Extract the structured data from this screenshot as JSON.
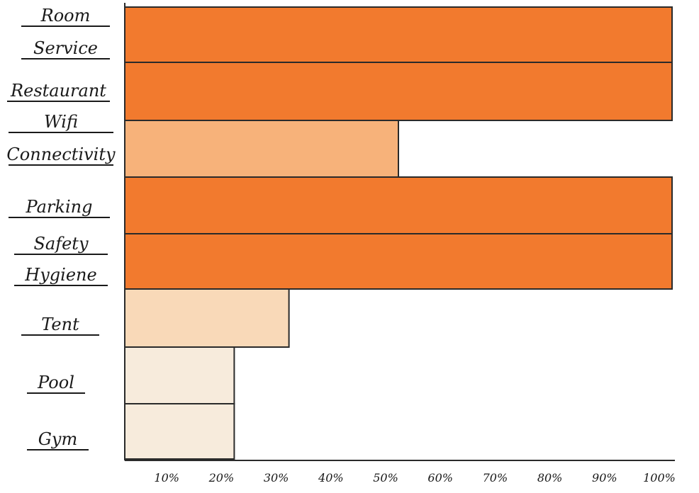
{
  "chart_data": {
    "type": "bar",
    "orientation": "horizontal",
    "title": "",
    "xlabel": "",
    "ylabel": "",
    "xlim": [
      0,
      100
    ],
    "grid": false,
    "legend": "none",
    "x_tick_labels": [
      "10%",
      "20%",
      "30%",
      "40%",
      "50%",
      "60%",
      "70%",
      "80%",
      "90%",
      "100%"
    ],
    "categories": [
      {
        "lines": [
          "Room",
          "Service"
        ],
        "bars": [
          100
        ]
      },
      {
        "lines": [
          "Restaurant"
        ],
        "bars": [
          100
        ]
      },
      {
        "lines": [
          "Wifi",
          "Connectivity"
        ],
        "bars": [
          50
        ]
      },
      {
        "lines": [
          "Parking"
        ],
        "bars": [
          100
        ]
      },
      {
        "lines": [
          "Safety",
          "Hygiene"
        ],
        "bars": [
          100
        ]
      },
      {
        "lines": [
          "Tent"
        ],
        "bars": [
          30
        ]
      },
      {
        "lines": [
          "Pool"
        ],
        "bars": [
          20
        ]
      },
      {
        "lines": [
          "Gym"
        ],
        "bars": [
          20
        ]
      }
    ],
    "colors": {
      "full": "#f27a2e",
      "mid": "#f7b27a",
      "low": "#f9d9b8",
      "faint": "#f7ebdc",
      "ink": "#1a1a1a"
    }
  }
}
